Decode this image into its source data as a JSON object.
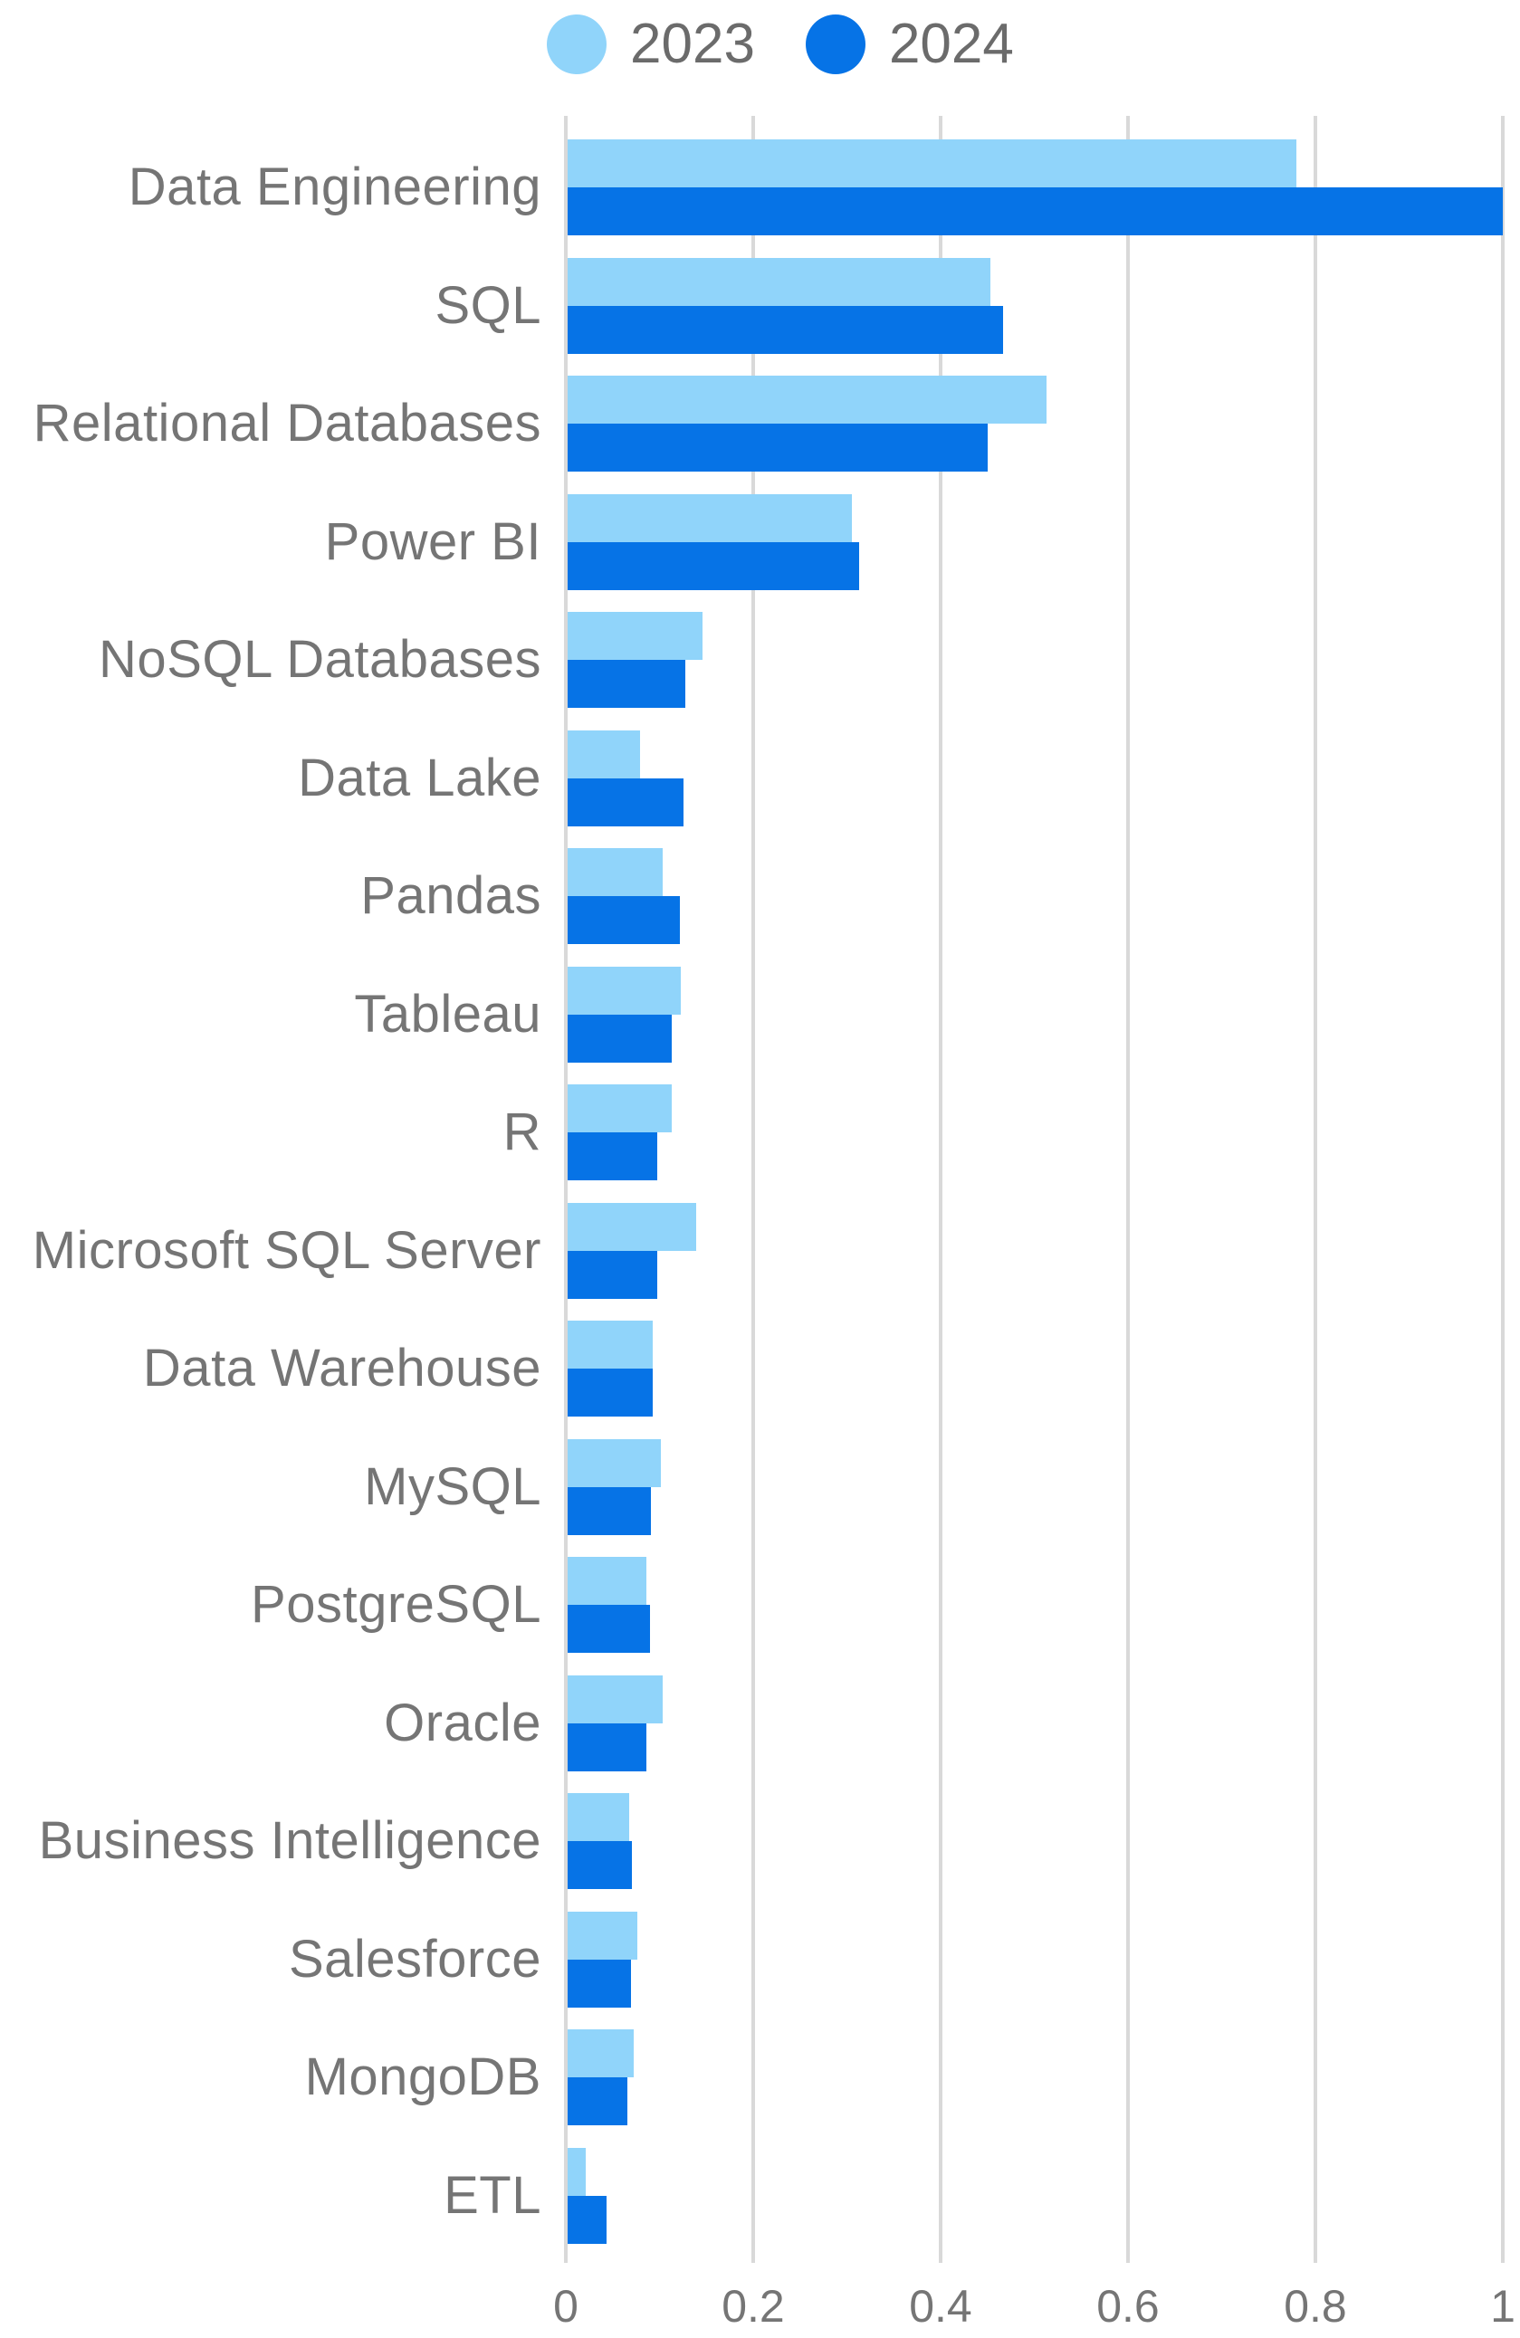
{
  "legend": {
    "position": "top-center",
    "items": [
      {
        "label": "2023",
        "color": "#90D4FA"
      },
      {
        "label": "2024",
        "color": "#0673E6"
      }
    ]
  },
  "chart_data": {
    "type": "bar",
    "orientation": "horizontal",
    "title": "",
    "xlabel": "",
    "ylabel": "",
    "categories": [
      "Data Engineering",
      "SQL",
      "Relational Databases",
      "Power BI",
      "NoSQL Databases",
      "Data Lake",
      "Pandas",
      "Tableau",
      "R",
      "Microsoft SQL Server",
      "Data Warehouse",
      "MySQL",
      "PostgreSQL",
      "Oracle",
      "Business Intelligence",
      "Salesforce",
      "MongoDB",
      "ETL"
    ],
    "series": [
      {
        "name": "2023",
        "color": "#90D4FA",
        "values": [
          0.78,
          0.453,
          0.513,
          0.305,
          0.146,
          0.079,
          0.103,
          0.123,
          0.113,
          0.139,
          0.093,
          0.101,
          0.086,
          0.103,
          0.068,
          0.076,
          0.072,
          0.021
        ]
      },
      {
        "name": "2024",
        "color": "#0673E6",
        "values": [
          1.0,
          0.467,
          0.45,
          0.313,
          0.128,
          0.126,
          0.122,
          0.113,
          0.098,
          0.098,
          0.093,
          0.091,
          0.09,
          0.086,
          0.071,
          0.07,
          0.066,
          0.043
        ]
      }
    ],
    "xlim": [
      0,
      1
    ],
    "x_ticks": [
      0,
      0.2,
      0.4,
      0.6,
      0.8,
      1
    ],
    "x_tick_labels": [
      "0",
      "0.2",
      "0.4",
      "0.6",
      "0.8",
      "1"
    ],
    "grid": "vertical",
    "legend_position": "top-center"
  },
  "colors": {
    "background": "#FFFFFF",
    "gridline": "#D9D9D9",
    "category_text": "#757575",
    "tick_text": "#757575",
    "legend_text": "#6B6B6B",
    "series_2023": "#90D4FA",
    "series_2024": "#0673E6"
  }
}
